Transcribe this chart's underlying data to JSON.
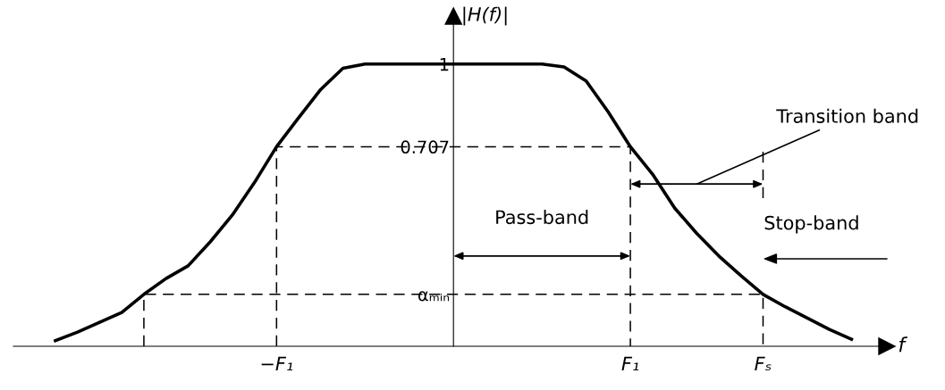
{
  "chart_data": {
    "type": "line",
    "xlabel": "f",
    "ylabel": "|H(f)|",
    "categories": [
      null,
      null,
      null,
      null,
      null,
      null,
      null,
      null,
      null,
      null,
      "−F₁",
      null,
      null,
      null,
      null,
      null,
      null,
      null,
      null,
      null,
      null,
      null,
      null,
      null,
      null,
      null,
      "F₁",
      null,
      null,
      null,
      null,
      null,
      "Fₛ",
      null,
      null,
      null,
      null
    ],
    "ylim": [
      0,
      1.17
    ],
    "yticks": [
      {
        "value": 0.184,
        "label": "αₘᵢₙ"
      },
      0.707,
      1
    ],
    "grid": false,
    "legend": false,
    "marker": "none",
    "line_style": "solid",
    "series": [
      {
        "color": "#000000",
        "values": [
          0.02,
          0.05,
          0.085,
          0.12,
          0.184,
          0.24,
          0.285,
          0.37,
          0.465,
          0.58,
          0.707,
          0.81,
          0.91,
          0.985,
          1,
          1,
          1,
          1,
          1,
          1,
          1,
          1,
          1,
          0.99,
          0.94,
          0.83,
          0.707,
          0.61,
          0.49,
          0.4,
          0.32,
          0.25,
          0.184,
          0.14,
          0.1,
          0.06,
          0.025
        ]
      }
    ],
    "ref_lines": [
      {
        "axis": "y",
        "value": 0.707,
        "line_style": "dashed",
        "color": "#000000"
      },
      {
        "axis": "y",
        "value": 0.184,
        "line_style": "dashed",
        "color": "#000000"
      }
    ],
    "annotations": [
      "Pass-band",
      "Transition band",
      "Stop-band"
    ]
  }
}
